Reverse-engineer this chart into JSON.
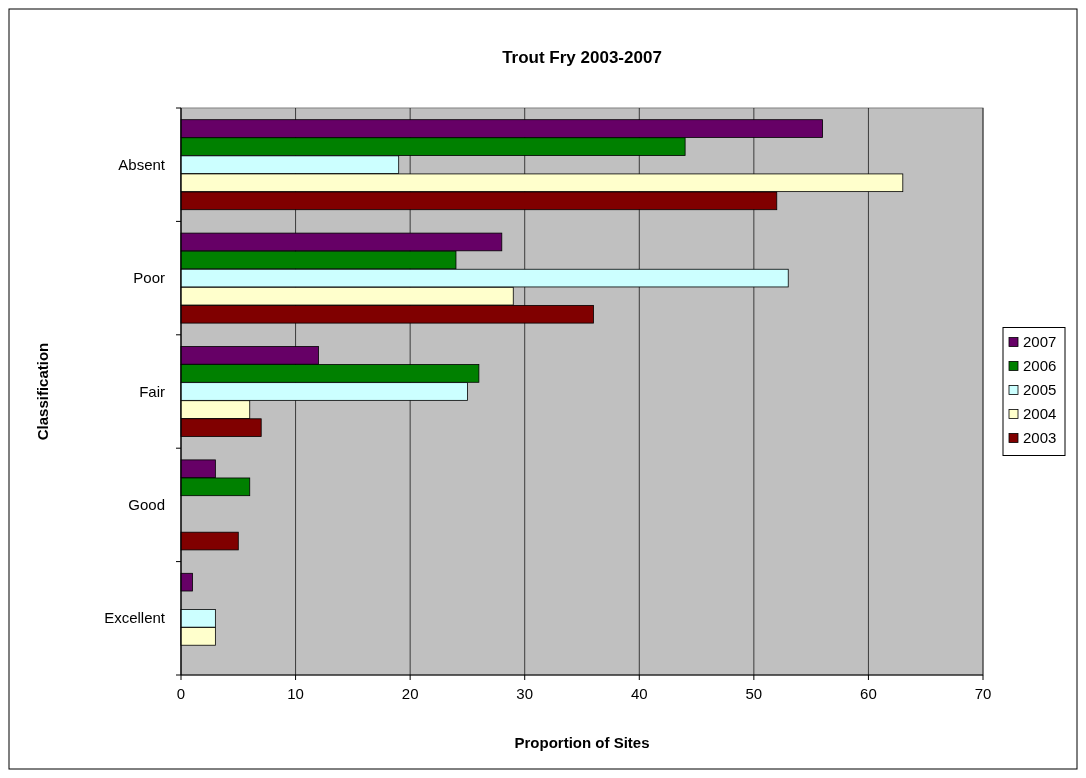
{
  "chart_data": {
    "type": "bar",
    "orientation": "horizontal",
    "title": "Trout Fry 2003-2007",
    "xlabel": "Proportion of Sites",
    "ylabel": "Classification",
    "categories": [
      "Absent",
      "Poor",
      "Fair",
      "Good",
      "Excellent"
    ],
    "series": [
      {
        "name": "2007",
        "color": "#660066",
        "values": [
          56,
          28,
          12,
          3,
          1
        ]
      },
      {
        "name": "2006",
        "color": "#008000",
        "values": [
          44,
          24,
          26,
          6,
          0
        ]
      },
      {
        "name": "2005",
        "color": "#ccffff",
        "values": [
          19,
          53,
          25,
          0,
          3
        ]
      },
      {
        "name": "2004",
        "color": "#ffffcc",
        "values": [
          63,
          29,
          6,
          0,
          3
        ]
      },
      {
        "name": "2003",
        "color": "#800000",
        "values": [
          52,
          36,
          7,
          5,
          0
        ]
      }
    ],
    "xlim": [
      0,
      70
    ],
    "xticks": [
      0,
      10,
      20,
      30,
      40,
      50,
      60,
      70
    ],
    "grid": "x",
    "legend": "right"
  }
}
